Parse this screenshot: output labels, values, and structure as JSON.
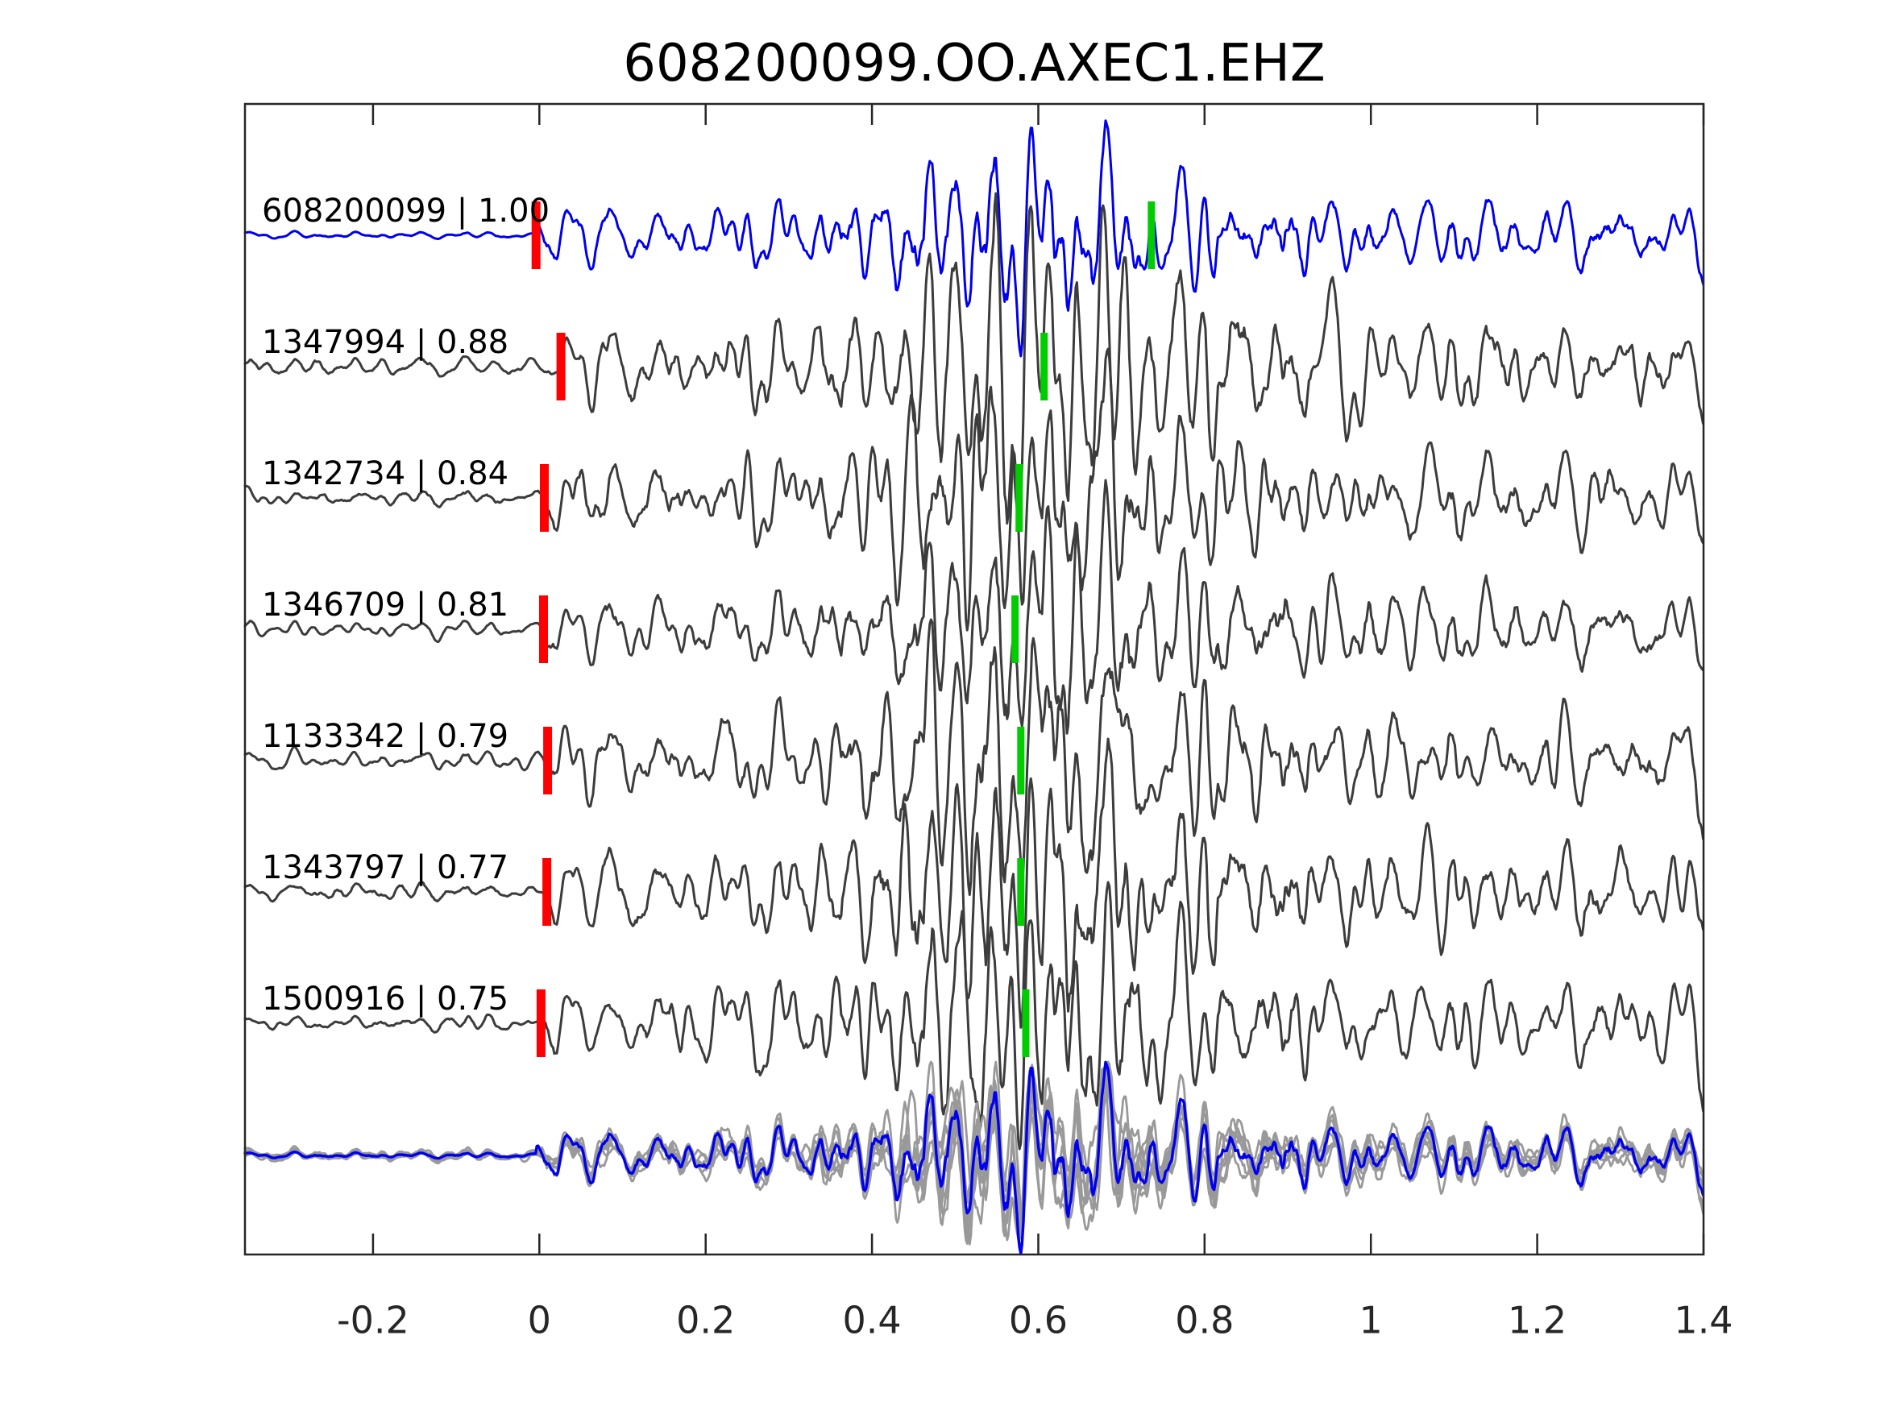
{
  "title": "608200099.OO.AXEC1.EHZ",
  "chart_data": {
    "type": "line",
    "variant": "seismogram_correlation_stack",
    "title": "608200099.OO.AXEC1.EHZ",
    "x_axis": {
      "range": [
        -0.354,
        1.4
      ],
      "tick_values": [
        -0.2,
        0,
        0.2,
        0.4,
        0.6,
        0.8,
        1.0,
        1.2,
        1.4
      ],
      "tick_labels": [
        "-0.2",
        "0",
        "0.2",
        "0.4",
        "0.6",
        "0.8",
        "1",
        "1.2",
        "1.4"
      ],
      "ticks_direction": "in",
      "ticks_on_top_and_bottom": true
    },
    "y_axis": {
      "ticks": "none"
    },
    "grid": "off",
    "legend": "none",
    "traces": [
      {
        "label": "608200099 | 1.00",
        "event_id": "608200099",
        "correlation": 1.0,
        "line_color": "#0000ee",
        "onset_pick_x": -0.004,
        "secondary_pick_x": 0.736
      },
      {
        "label": "1347994 | 0.88",
        "event_id": "1347994",
        "correlation": 0.88,
        "line_color": "#3c3c3c",
        "onset_pick_x": 0.026,
        "secondary_pick_x": 0.607
      },
      {
        "label": "1342734 | 0.84",
        "event_id": "1342734",
        "correlation": 0.84,
        "line_color": "#3c3c3c",
        "onset_pick_x": 0.006,
        "secondary_pick_x": 0.577
      },
      {
        "label": "1346709 | 0.81",
        "event_id": "1346709",
        "correlation": 0.81,
        "line_color": "#3c3c3c",
        "onset_pick_x": 0.005,
        "secondary_pick_x": 0.572
      },
      {
        "label": "1133342 | 0.79",
        "event_id": "1133342",
        "correlation": 0.79,
        "line_color": "#3c3c3c",
        "onset_pick_x": 0.01,
        "secondary_pick_x": 0.579
      },
      {
        "label": "1343797 | 0.77",
        "event_id": "1343797",
        "correlation": 0.77,
        "line_color": "#3c3c3c",
        "onset_pick_x": 0.009,
        "secondary_pick_x": 0.579
      },
      {
        "label": "1500916 | 0.75",
        "event_id": "1500916",
        "correlation": 0.75,
        "line_color": "#3c3c3c",
        "onset_pick_x": 0.002,
        "secondary_pick_x": 0.585
      }
    ],
    "overlay_row": {
      "description": "all matched waveforms overlaid and aligned, template highlighted",
      "gray_line_color": "#999999",
      "highlight_line_color": "#0000ee"
    },
    "pick_markers": {
      "onset_color": "#ff0000",
      "secondary_color": "#00cc00"
    },
    "note": "Individual waveform sample values are not legible in the screenshot; traces are procedurally approximated band-limited noise with a matching amplitude envelope (quiet before the red onset pick, burst near x=0.45-0.7, decaying coda)."
  }
}
